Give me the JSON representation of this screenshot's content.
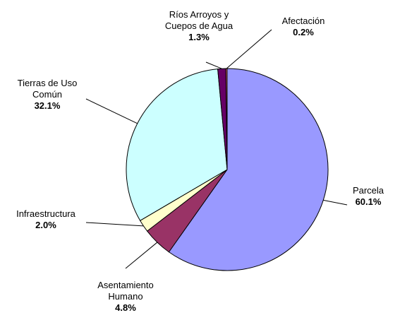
{
  "chart_data": {
    "type": "pie",
    "categories": [
      "Parcela",
      "Asentamiento Humano",
      "Infraestructura",
      "Tierras de Uso Común",
      "Ríos Arroyos y Cuepos de Agua",
      "Afectación"
    ],
    "values": [
      60.1,
      4.8,
      2.0,
      32.1,
      1.3,
      0.2
    ],
    "value_labels": [
      "60.1%",
      "4.8%",
      "2.0%",
      "32.1%",
      "1.3%",
      "0.2%"
    ],
    "colors": [
      "#9999ff",
      "#993366",
      "#ffffcc",
      "#ccffff",
      "#660066",
      "#ff8080"
    ]
  }
}
